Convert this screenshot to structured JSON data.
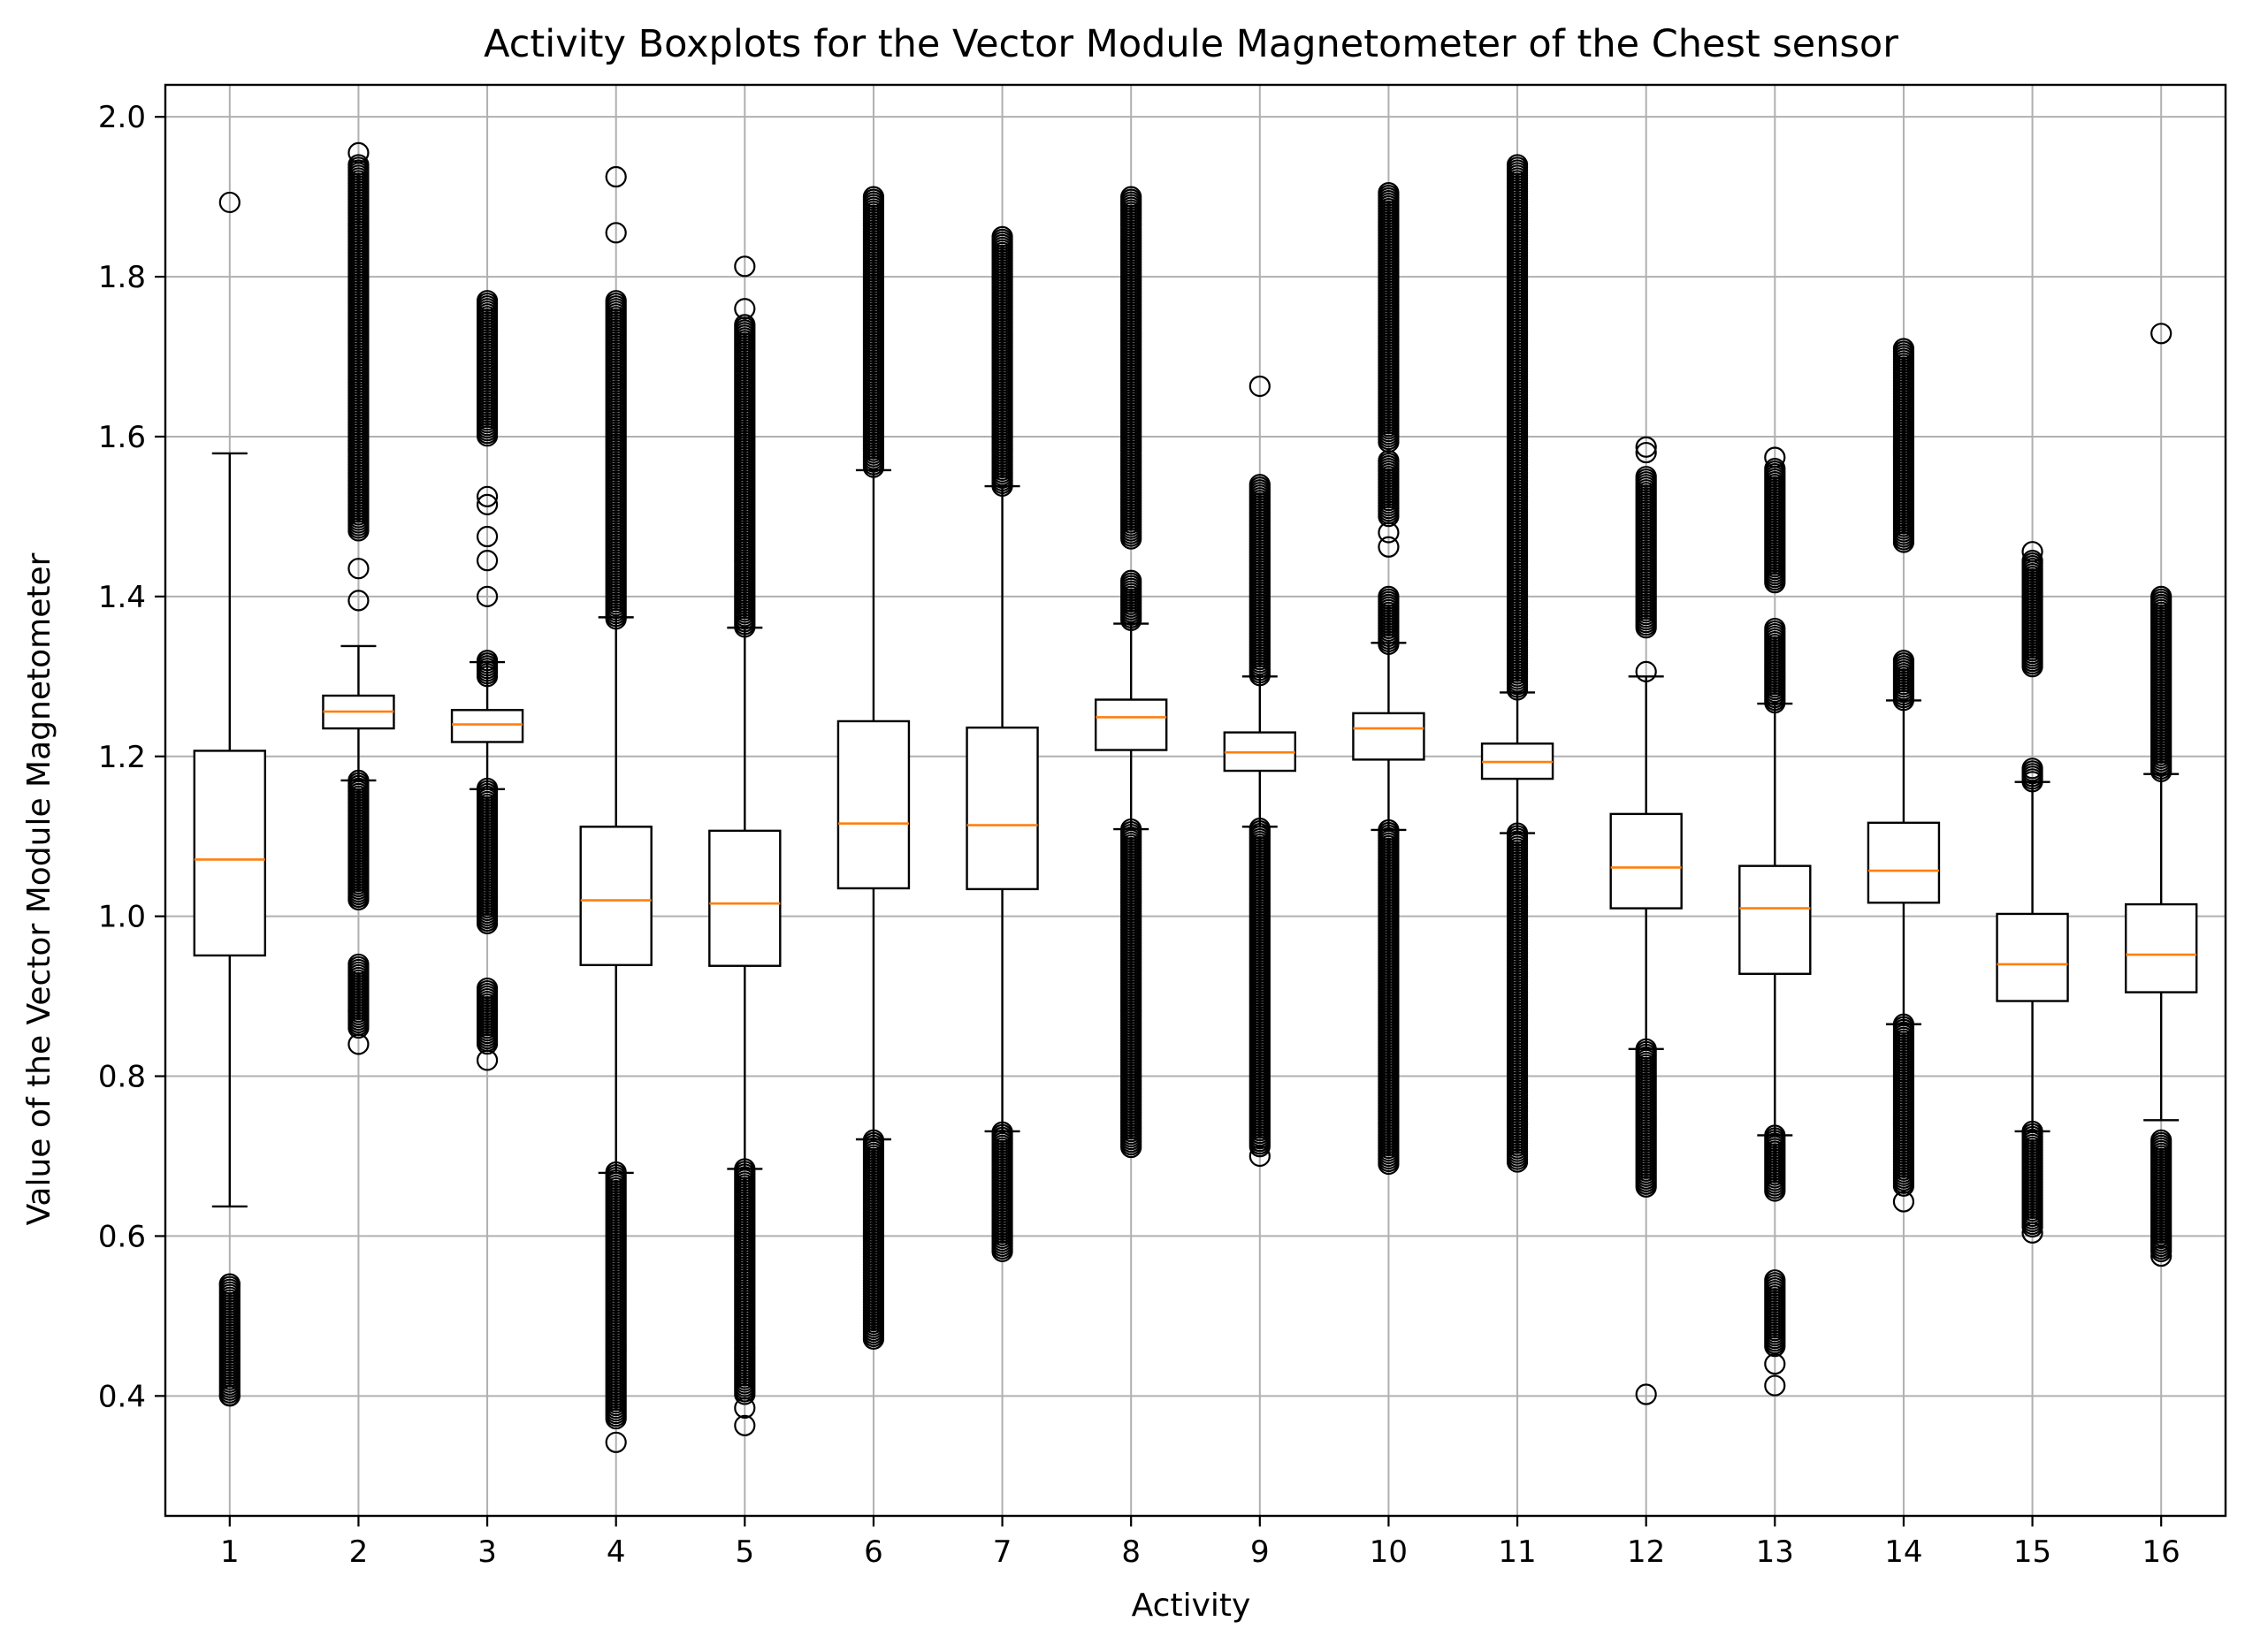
{
  "chart_data": {
    "type": "boxplot",
    "title": "Activity Boxplots for the Vector Module Magnetometer of the Chest sensor",
    "xlabel": "Activity",
    "ylabel": "Value of the Vector Module Magnetometer",
    "ylim": [
      0.25,
      2.04
    ],
    "yticks": [
      0.4,
      0.6,
      0.8,
      1.0,
      1.2,
      1.4,
      1.6,
      1.8,
      2.0
    ],
    "ytick_labels": [
      "0.4",
      "0.6",
      "0.8",
      "1.0",
      "1.2",
      "1.4",
      "1.6",
      "1.8",
      "2.0"
    ],
    "grid": true,
    "colors": {
      "box": "#000000",
      "median": "#ff7f0e",
      "grid": "#b0b0b0",
      "flier": "#000000"
    },
    "categories": [
      "1",
      "2",
      "3",
      "4",
      "5",
      "6",
      "7",
      "8",
      "9",
      "10",
      "11",
      "12",
      "13",
      "14",
      "15",
      "16"
    ],
    "boxes": [
      {
        "label": "1",
        "whislo": 0.637,
        "q1": 0.951,
        "med": 1.071,
        "q3": 1.207,
        "whishi": 1.579,
        "fliers": [
          0.4,
          0.54,
          1.893
        ],
        "flier_bands": [
          [
            0.4,
            0.54
          ]
        ]
      },
      {
        "label": "2",
        "whislo": 1.17,
        "q1": 1.235,
        "med": 1.256,
        "q3": 1.276,
        "whishi": 1.338,
        "fliers": [
          0.84,
          1.395,
          1.435,
          1.955
        ],
        "flier_bands": [
          [
            0.86,
            0.94
          ],
          [
            1.02,
            1.17
          ],
          [
            1.48,
            1.94
          ]
        ]
      },
      {
        "label": "3",
        "whislo": 1.159,
        "q1": 1.218,
        "med": 1.24,
        "q3": 1.258,
        "whishi": 1.318,
        "fliers": [
          0.82,
          1.4,
          1.445,
          1.475,
          1.515,
          1.525
        ],
        "flier_bands": [
          [
            0.84,
            0.91
          ],
          [
            0.99,
            1.16
          ],
          [
            1.3,
            1.32
          ],
          [
            1.6,
            1.77
          ]
        ]
      },
      {
        "label": "4",
        "whislo": 0.679,
        "q1": 0.939,
        "med": 1.02,
        "q3": 1.112,
        "whishi": 1.374,
        "fliers": [
          0.342,
          1.855,
          1.925
        ],
        "flier_bands": [
          [
            0.37,
            0.68
          ],
          [
            1.37,
            1.77
          ]
        ]
      },
      {
        "label": "5",
        "whislo": 0.684,
        "q1": 0.938,
        "med": 1.016,
        "q3": 1.107,
        "whishi": 1.361,
        "fliers": [
          0.363,
          0.385,
          1.76,
          1.813
        ],
        "flier_bands": [
          [
            0.4,
            0.684
          ],
          [
            1.36,
            1.74
          ]
        ]
      },
      {
        "label": "6",
        "whislo": 0.721,
        "q1": 1.035,
        "med": 1.116,
        "q3": 1.244,
        "whishi": 1.558,
        "fliers": [],
        "flier_bands": [
          [
            0.47,
            0.72
          ],
          [
            1.56,
            1.9
          ]
        ]
      },
      {
        "label": "7",
        "whislo": 0.731,
        "q1": 1.034,
        "med": 1.114,
        "q3": 1.236,
        "whishi": 1.538,
        "fliers": [],
        "flier_bands": [
          [
            0.58,
            0.73
          ],
          [
            1.538,
            1.85
          ]
        ]
      },
      {
        "label": "8",
        "whislo": 1.109,
        "q1": 1.208,
        "med": 1.249,
        "q3": 1.271,
        "whishi": 1.366,
        "fliers": [],
        "flier_bands": [
          [
            0.71,
            1.109
          ],
          [
            1.37,
            1.42
          ],
          [
            1.47,
            1.9
          ]
        ]
      },
      {
        "label": "9",
        "whislo": 1.112,
        "q1": 1.182,
        "med": 1.205,
        "q3": 1.23,
        "whishi": 1.3,
        "fliers": [
          0.7,
          1.663
        ],
        "flier_bands": [
          [
            0.71,
            1.11
          ],
          [
            1.3,
            1.54
          ]
        ]
      },
      {
        "label": "10",
        "whislo": 1.108,
        "q1": 1.196,
        "med": 1.235,
        "q3": 1.254,
        "whishi": 1.342,
        "fliers": [
          1.462,
          1.48
        ],
        "flier_bands": [
          [
            0.69,
            1.108
          ],
          [
            1.34,
            1.4
          ],
          [
            1.5,
            1.57
          ],
          [
            1.59,
            1.905
          ]
        ]
      },
      {
        "label": "11",
        "whislo": 1.104,
        "q1": 1.172,
        "med": 1.193,
        "q3": 1.216,
        "whishi": 1.28,
        "fliers": [],
        "flier_bands": [
          [
            0.69,
            1.104
          ],
          [
            1.28,
            1.94
          ]
        ]
      },
      {
        "label": "12",
        "whislo": 0.834,
        "q1": 1.01,
        "med": 1.061,
        "q3": 1.128,
        "whishi": 1.3,
        "fliers": [
          0.402,
          1.306,
          1.58,
          1.587
        ],
        "flier_bands": [
          [
            0.66,
            0.834
          ],
          [
            1.36,
            1.55
          ]
        ]
      },
      {
        "label": "13",
        "whislo": 0.726,
        "q1": 0.928,
        "med": 1.01,
        "q3": 1.063,
        "whishi": 1.266,
        "fliers": [
          0.413,
          0.44,
          1.574
        ],
        "flier_bands": [
          [
            0.46,
            0.545
          ],
          [
            0.655,
            0.726
          ],
          [
            1.266,
            1.36
          ],
          [
            1.415,
            1.56
          ]
        ]
      },
      {
        "label": "14",
        "whislo": 0.865,
        "q1": 1.017,
        "med": 1.057,
        "q3": 1.117,
        "whishi": 1.27,
        "fliers": [
          0.643
        ],
        "flier_bands": [
          [
            0.66,
            0.865
          ],
          [
            1.27,
            1.32
          ],
          [
            1.465,
            1.71
          ]
        ]
      },
      {
        "label": "15",
        "whislo": 0.731,
        "q1": 0.894,
        "med": 0.94,
        "q3": 1.003,
        "whishi": 1.168,
        "fliers": [
          0.604,
          1.456
        ],
        "flier_bands": [
          [
            0.61,
            0.731
          ],
          [
            1.168,
            1.185
          ],
          [
            1.31,
            1.445
          ]
        ]
      },
      {
        "label": "16",
        "whislo": 0.745,
        "q1": 0.905,
        "med": 0.952,
        "q3": 1.015,
        "whishi": 1.178,
        "fliers": [
          0.575,
          1.729
        ],
        "flier_bands": [
          [
            0.58,
            0.72
          ],
          [
            1.178,
            1.4
          ]
        ]
      }
    ]
  }
}
